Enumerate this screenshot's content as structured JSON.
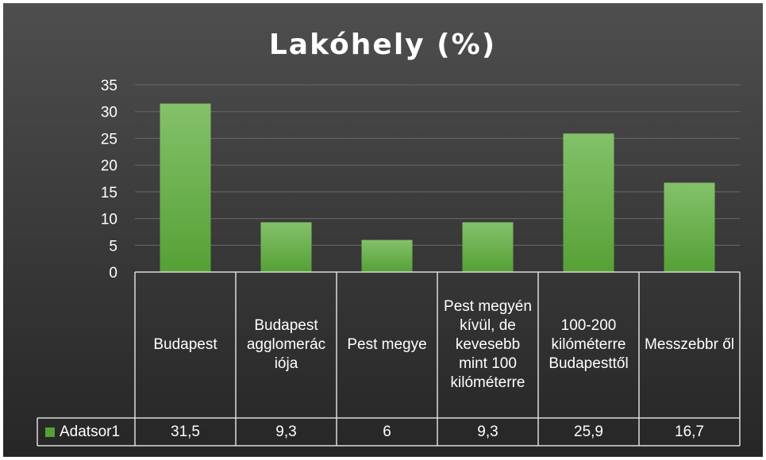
{
  "chart_data": {
    "type": "bar",
    "title": "Lakóhely (%)",
    "categories": [
      "Budapest",
      "Budapest agglomerác iója",
      "Pest megye",
      "Pest megyén kívül, de kevesebb mint 100 kilóméterre",
      "100-200 kilóméterre Budapesttől",
      "Messzebbr ől"
    ],
    "series": [
      {
        "name": "Adatsor1",
        "values": [
          31.5,
          9.3,
          6,
          9.3,
          25.9,
          16.7
        ],
        "value_labels": [
          "31,5",
          "9,3",
          "6",
          "9,3",
          "25,9",
          "16,7"
        ]
      }
    ],
    "yticks": [
      0,
      5,
      10,
      15,
      20,
      25,
      30,
      35
    ],
    "ylim": [
      0,
      35
    ],
    "grid": true,
    "legend": "data-table-left",
    "colors": {
      "background_top": "#4e4e4e",
      "background_bottom": "#262626",
      "bar_top": "#84c16a",
      "bar_bottom": "#55a135",
      "grid": "#6a6a6a",
      "table_lines": "#dcdcdc"
    }
  }
}
